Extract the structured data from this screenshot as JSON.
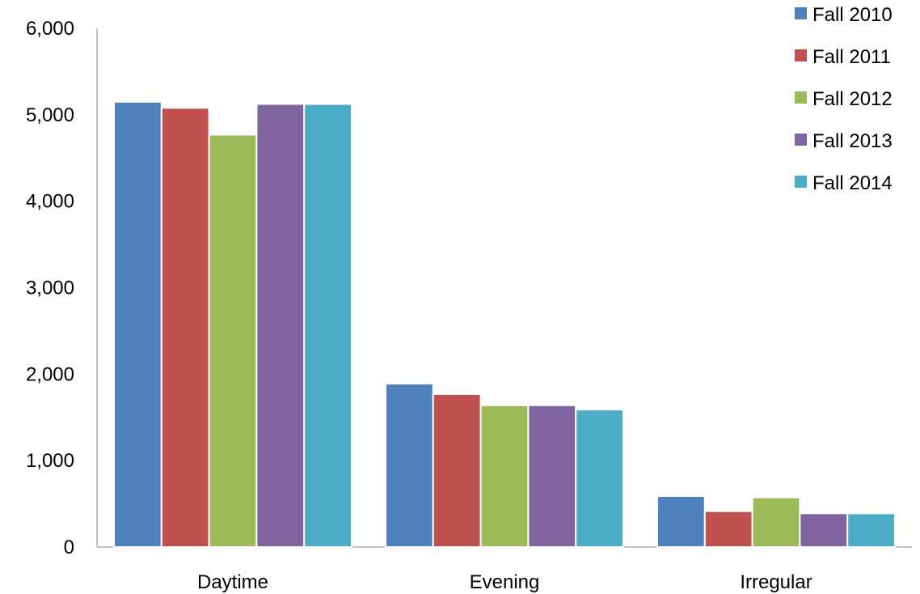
{
  "chart_data": {
    "type": "bar",
    "title": "",
    "xlabel": "",
    "ylabel": "",
    "categories": [
      "Daytime",
      "Evening",
      "Irregular"
    ],
    "series": [
      {
        "name": "Fall 2010",
        "color": "#4F81BD",
        "values": [
          5150,
          1890,
          590
        ]
      },
      {
        "name": "Fall 2011",
        "color": "#C0504D",
        "values": [
          5080,
          1770,
          415
        ]
      },
      {
        "name": "Fall 2012",
        "color": "#9BBB59",
        "values": [
          4770,
          1640,
          575
        ]
      },
      {
        "name": "Fall 2013",
        "color": "#8064A2",
        "values": [
          5125,
          1640,
          390
        ]
      },
      {
        "name": "Fall 2014",
        "color": "#4BACC6",
        "values": [
          5125,
          1590,
          390
        ]
      }
    ],
    "ylim": [
      0,
      6000
    ],
    "yticks": [
      0,
      1000,
      2000,
      3000,
      4000,
      5000,
      6000
    ],
    "ytick_labels": [
      "0",
      "1,000",
      "2,000",
      "3,000",
      "4,000",
      "5,000",
      "6,000"
    ],
    "grid": false,
    "legend_position": "top-right"
  }
}
